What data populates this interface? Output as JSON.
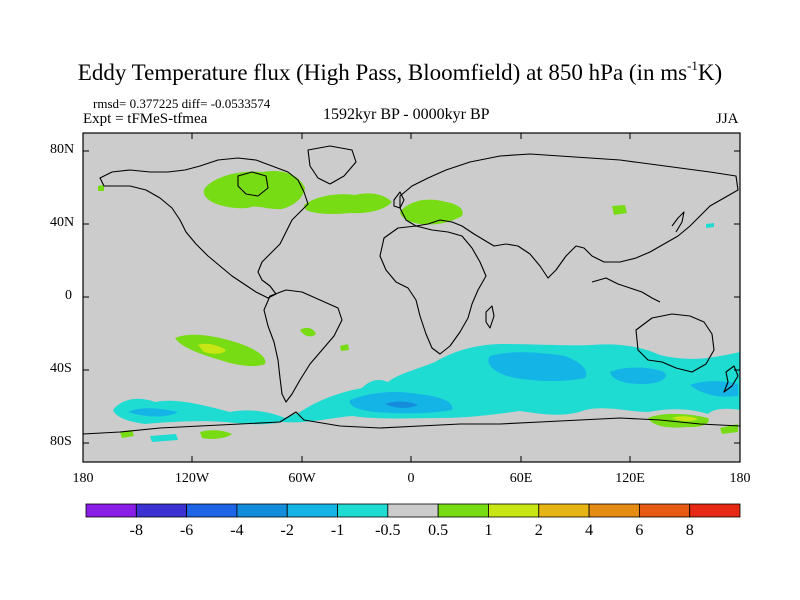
{
  "title": {
    "main": "Eddy Temperature flux (High Pass, Bloomfield) at 850 hPa (in ms",
    "sup": "-1",
    "unit_end": "K)"
  },
  "subtitle": {
    "stats": "rmsd= 0.377225  diff= -0.0533574",
    "experiment": "Expt = tFMeS-tfmea",
    "period": "1592kyr BP - 0000kyr BP",
    "season": "JJA"
  },
  "axes": {
    "y_ticks": [
      "80N",
      "40N",
      "0",
      "40S",
      "80S"
    ],
    "x_ticks": [
      "180",
      "120W",
      "60W",
      "0",
      "60E",
      "120E",
      "180"
    ]
  },
  "colorbar": {
    "labels": [
      "-8",
      "-6",
      "-4",
      "-2",
      "-1",
      "-0.5",
      "0.5",
      "1",
      "2",
      "4",
      "6",
      "8"
    ],
    "colors": [
      "#8a1ee6",
      "#3c32d2",
      "#1e64e6",
      "#148cdc",
      "#14b4e6",
      "#1edcd2",
      "#cccccc",
      "#78dc14",
      "#c8e614",
      "#e6b414",
      "#e68c14",
      "#e65a14",
      "#e62814"
    ]
  },
  "field_colors": {
    "background": "#cccccc",
    "pos_05_1": "#78dc14",
    "pos_1_2": "#c8e614",
    "neg_05_1": "#1edcd2",
    "neg_1_2": "#14b4e6",
    "neg_2_4": "#148cdc"
  }
}
